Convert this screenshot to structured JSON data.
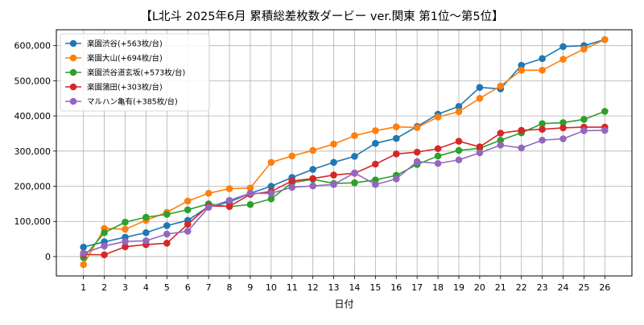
{
  "chart_data": {
    "type": "line",
    "title": "【L北斗 2025年6月  累積総差枚数ダービー ver.関東 第1位～第5位】",
    "xlabel": "日付",
    "ylabel": "",
    "x": [
      1,
      2,
      3,
      4,
      5,
      6,
      7,
      8,
      9,
      10,
      11,
      12,
      13,
      14,
      15,
      16,
      17,
      18,
      19,
      20,
      21,
      22,
      23,
      24,
      25,
      26
    ],
    "xlim": [
      -0.3,
      27.3
    ],
    "ylim": [
      -55000,
      645000
    ],
    "yticks": [
      0,
      100000,
      200000,
      300000,
      400000,
      500000,
      600000
    ],
    "ytick_labels": [
      "0",
      "100,000",
      "200,000",
      "300,000",
      "400,000",
      "500,000",
      "600,000"
    ],
    "grid": true,
    "legend_position": "top-left",
    "series": [
      {
        "name": "楽園渋谷(+563枚/台)",
        "color": "#1f77b4",
        "values": [
          27000,
          42000,
          55000,
          68000,
          88000,
          103000,
          142000,
          155000,
          180000,
          200000,
          225000,
          248000,
          268000,
          285000,
          322000,
          336000,
          370000,
          405000,
          427000,
          481000,
          477000,
          544000,
          563000,
          597000,
          600000,
          617000
        ]
      },
      {
        "name": "楽園大山(+694枚/台)",
        "color": "#ff7f0e",
        "values": [
          -23000,
          80000,
          78000,
          103000,
          126000,
          158000,
          180000,
          193000,
          195000,
          268000,
          286000,
          302000,
          320000,
          344000,
          358000,
          369000,
          367000,
          397000,
          412000,
          450000,
          485000,
          530000,
          530000,
          561000,
          590000,
          617000
        ]
      },
      {
        "name": "楽園渋谷道玄坂(+573枚/台)",
        "color": "#2ca02c",
        "values": [
          -3000,
          68000,
          98000,
          112000,
          120000,
          133000,
          150000,
          142000,
          148000,
          164000,
          210000,
          220000,
          208000,
          210000,
          218000,
          231000,
          262000,
          286000,
          302000,
          308000,
          331000,
          352000,
          378000,
          381000,
          390000,
          413000
        ]
      },
      {
        "name": "楽園蒲田(+303枚/台)",
        "color": "#d62728",
        "values": [
          6000,
          5000,
          28000,
          34000,
          38000,
          92000,
          144000,
          143000,
          177000,
          185000,
          215000,
          222000,
          232000,
          237000,
          263000,
          292000,
          297000,
          307000,
          328000,
          312000,
          351000,
          359000,
          362000,
          366000,
          368000,
          368000
        ]
      },
      {
        "name": "マルハン亀有(+385枚/台)",
        "color": "#9467bd",
        "values": [
          10000,
          30000,
          43000,
          45000,
          64000,
          72000,
          140000,
          160000,
          180000,
          180000,
          197000,
          201000,
          205000,
          238000,
          205000,
          221000,
          270000,
          265000,
          275000,
          295000,
          317000,
          309000,
          331000,
          335000,
          358000,
          359000
        ]
      }
    ]
  }
}
